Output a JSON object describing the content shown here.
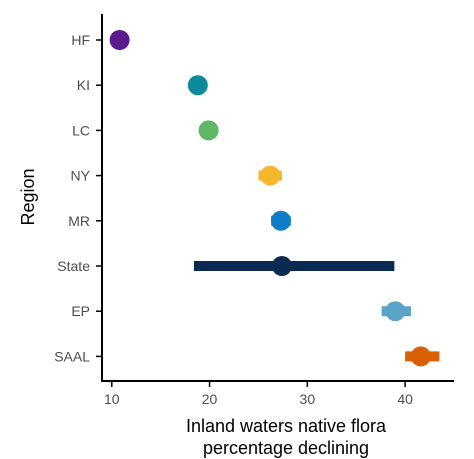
{
  "chart_data": {
    "type": "scatter",
    "title": "",
    "xlabel": [
      "Inland waters native flora",
      "percentage declining"
    ],
    "ylabel": "Region",
    "xlim": [
      9,
      45
    ],
    "xticks": [
      10,
      20,
      30,
      40
    ],
    "grid": false,
    "categories": [
      "HF",
      "KI",
      "LC",
      "NY",
      "MR",
      "State",
      "EP",
      "SAAL"
    ],
    "points": [
      {
        "region": "HF",
        "value": 10.8,
        "low": 10.8,
        "high": 10.8,
        "color": "#5c1a8f"
      },
      {
        "region": "KI",
        "value": 18.8,
        "low": 18.0,
        "high": 19.6,
        "color": "#0d8a99"
      },
      {
        "region": "LC",
        "value": 19.9,
        "low": 19.1,
        "high": 20.7,
        "color": "#5fb865"
      },
      {
        "region": "NY",
        "value": 26.2,
        "low": 25.0,
        "high": 27.4,
        "color": "#f5b72b"
      },
      {
        "region": "MR",
        "value": 27.3,
        "low": 26.3,
        "high": 28.3,
        "color": "#0d7dc7"
      },
      {
        "region": "State",
        "value": 27.4,
        "low": 18.4,
        "high": 38.9,
        "color": "#0b2a52"
      },
      {
        "region": "EP",
        "value": 39.0,
        "low": 37.6,
        "high": 40.6,
        "color": "#5ba3c9"
      },
      {
        "region": "SAAL",
        "value": 41.6,
        "low": 40.0,
        "high": 43.5,
        "color": "#d95f02"
      }
    ]
  }
}
